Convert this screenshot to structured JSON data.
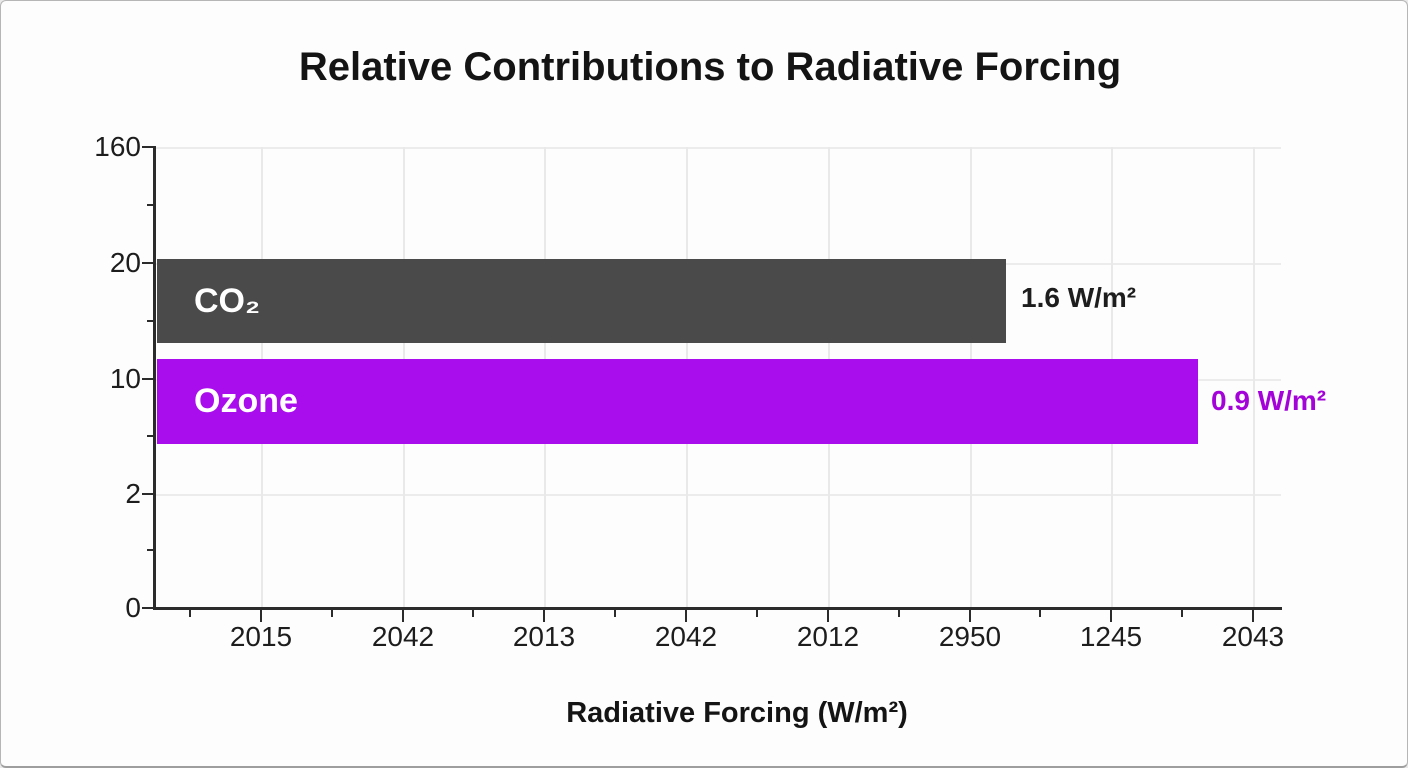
{
  "window": {
    "background": "#fdfdfd",
    "border_color": "#b6b6b6"
  },
  "chart_data": {
    "type": "bar",
    "orientation": "horizontal",
    "title": "Relative Contributions to Radiative Forcing",
    "xlabel": "Radiative Forcing (W/m²)",
    "ylabel": "",
    "grid": true,
    "legend": false,
    "categories": [
      "CO₂",
      "Ozone"
    ],
    "values": [
      1.6,
      0.9
    ],
    "series": [
      {
        "name": "CO₂",
        "value": 1.6,
        "value_label": "1.6 W/m²",
        "bar_color": "#4a4a4a",
        "value_label_color": "#1d1d1d",
        "bar_width_frac": 0.755
      },
      {
        "name": "Ozone",
        "value": 0.9,
        "value_label": "0.9 W/m²",
        "bar_color": "#a90ded",
        "value_label_color": "#a303d8",
        "bar_width_frac": 0.9255
      }
    ],
    "x_tick_labels": [
      "2015",
      "2042",
      "2013",
      "2042",
      "2012",
      "2950",
      "1245",
      "2043"
    ],
    "y_tick_labels": [
      "160",
      "20",
      "10",
      "2",
      "0"
    ]
  }
}
